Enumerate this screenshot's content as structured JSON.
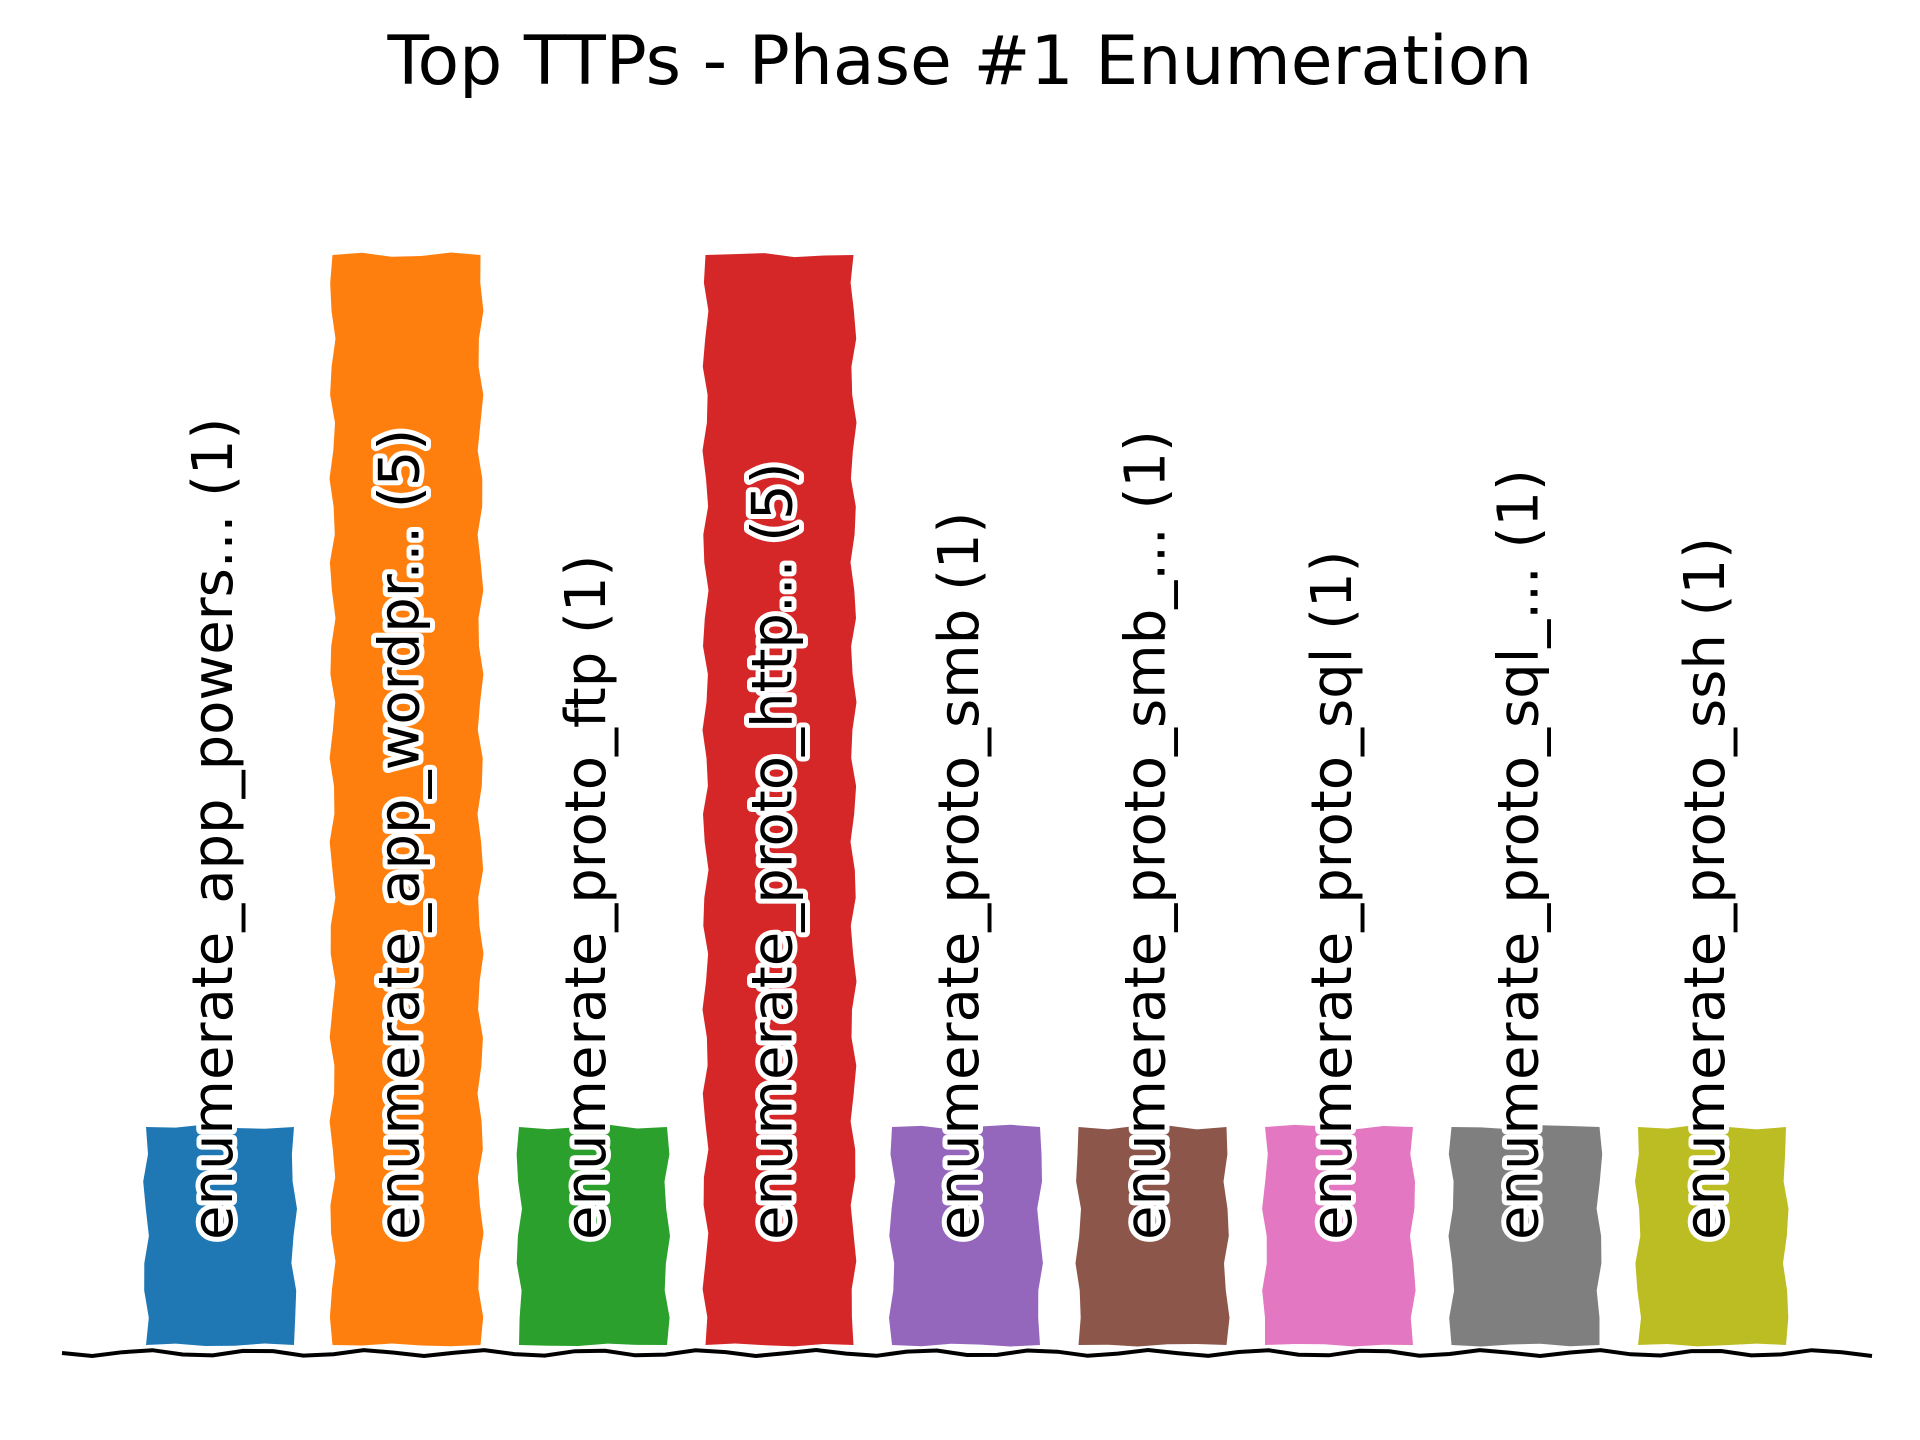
{
  "chart_data": {
    "type": "bar",
    "title": "Top TTPs - Phase #1 Enumeration",
    "xlabel": "",
    "ylabel": "",
    "ylim": [
      0,
      5
    ],
    "grid": false,
    "legend": "none",
    "categories": [
      "enumerate_app_powers...",
      "enumerate_app_wordpr...",
      "enumerate_proto_ftp",
      "enumerate_proto_http...",
      "enumerate_proto_smb",
      "enumerate_proto_smb_...",
      "enumerate_proto_sql",
      "enumerate_proto_sql_...",
      "enumerate_proto_ssh"
    ],
    "values": [
      1,
      5,
      1,
      5,
      1,
      1,
      1,
      1,
      1
    ],
    "labels": [
      "enumerate_app_powers... (1)",
      "enumerate_app_wordpr... (5)",
      "enumerate_proto_ftp (1)",
      "enumerate_proto_http... (5)",
      "enumerate_proto_smb (1)",
      "enumerate_proto_smb_... (1)",
      "enumerate_proto_sql (1)",
      "enumerate_proto_sql_... (1)",
      "enumerate_proto_ssh (1)"
    ],
    "colors": [
      "#1f77b4",
      "#ff7f0e",
      "#2ca02c",
      "#d62728",
      "#9467bd",
      "#8c564b",
      "#e377c2",
      "#7f7f7f",
      "#bcbd22"
    ]
  }
}
